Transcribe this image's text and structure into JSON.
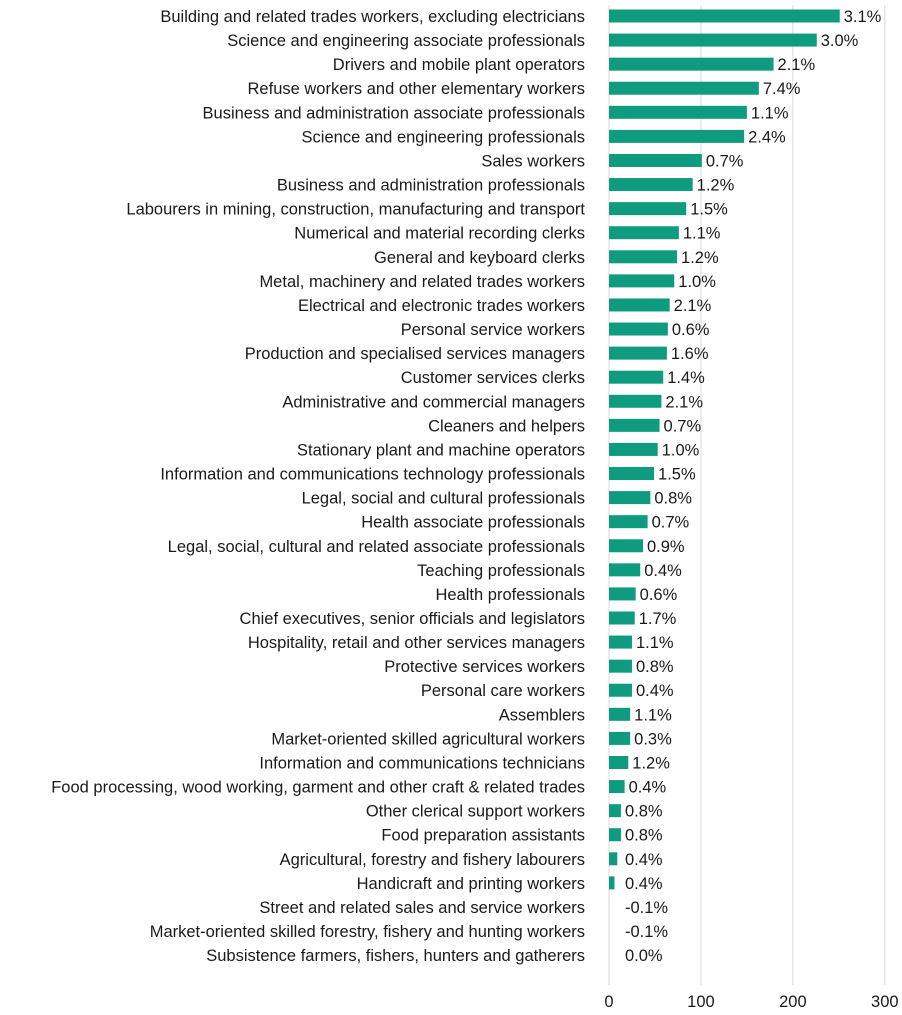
{
  "chart_data": {
    "type": "bar",
    "orientation": "horizontal",
    "title": "",
    "xlabel": "",
    "ylabel": "",
    "xlim": [
      0,
      300
    ],
    "x_ticks": [
      0,
      100,
      200,
      300
    ],
    "grid": "vertical gridlines",
    "legend": "none",
    "bar_color": "#0f9b7f",
    "categories": [
      "Building and related trades workers, excluding electricians",
      "Science and engineering associate professionals",
      "Drivers and mobile plant operators",
      "Refuse workers and other elementary workers",
      "Business and administration associate professionals",
      "Science and engineering professionals",
      "Sales workers",
      "Business and administration professionals",
      "Labourers in mining, construction, manufacturing and transport",
      "Numerical and material recording clerks",
      "General and keyboard clerks",
      "Metal, machinery and related trades workers",
      "Electrical and electronic trades workers ",
      "Personal service workers",
      "Production and specialised services managers",
      "Customer services clerks",
      "Administrative and commercial managers",
      "Cleaners and helpers",
      "Stationary plant and machine operators",
      "Information and communications technology professionals",
      "Legal, social and cultural professionals",
      "Health associate professionals",
      "Legal, social, cultural and related associate professionals",
      "Teaching professionals",
      "Health professionals",
      "Chief executives, senior officials and legislators",
      "Hospitality, retail and other services managers",
      "Protective services workers",
      "Personal care workers",
      "Assemblers",
      "Market-oriented skilled agricultural workers",
      "Information and communications technicians",
      "Food processing, wood working, garment and other craft & related trades",
      "Other clerical support workers",
      "Food preparation assistants",
      "Agricultural, forestry and fishery labourers",
      "Handicraft and printing workers",
      "Street and related sales and service workers",
      "Market-oriented skilled forestry, fishery and hunting workers",
      "Subsistence farmers, fishers, hunters and gatherers"
    ],
    "values": [
      251,
      226,
      179,
      163,
      150,
      147,
      101,
      91,
      84,
      76,
      74,
      71,
      66,
      64,
      63,
      59,
      57,
      55,
      53,
      49,
      45,
      42,
      37,
      34,
      29,
      28,
      25,
      25,
      25,
      23,
      23,
      21,
      17,
      13,
      13,
      9,
      6,
      0,
      0,
      0
    ],
    "data_labels": [
      "3.1%",
      "3.0%",
      "2.1%",
      "7.4%",
      "1.1%",
      "2.4%",
      "0.7%",
      "1.2%",
      "1.5%",
      "1.1%",
      "1.2%",
      "1.0%",
      "2.1%",
      "0.6%",
      "1.6%",
      "1.4%",
      "2.1%",
      "0.7%",
      "1.0%",
      "1.5%",
      "0.8%",
      "0.7%",
      "0.9%",
      "0.4%",
      "0.6%",
      "1.7%",
      "1.1%",
      "0.8%",
      "0.4%",
      "1.1%",
      "0.3%",
      "1.2%",
      "0.4%",
      "0.8%",
      "0.8%",
      "0.4%",
      "0.4%",
      "-0.1%",
      "-0.1%",
      "0.0%"
    ]
  }
}
